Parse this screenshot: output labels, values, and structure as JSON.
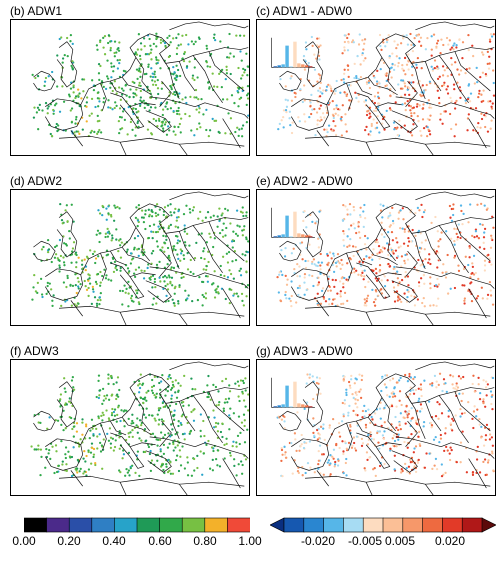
{
  "panels": [
    {
      "label": "(b) ADW1",
      "kind": "abs"
    },
    {
      "label": "(c) ADW1 - ADW0",
      "kind": "diff"
    },
    {
      "label": "(d) ADW2",
      "kind": "abs"
    },
    {
      "label": "(e) ADW2 - ADW0",
      "kind": "diff"
    },
    {
      "label": "(f) ADW3",
      "kind": "abs"
    },
    {
      "label": "(g) ADW3 - ADW0",
      "kind": "diff"
    }
  ],
  "colorbars": {
    "absolute": {
      "ticks": [
        "0.00",
        "0.20",
        "0.40",
        "0.60",
        "0.80",
        "1.00"
      ],
      "colors": [
        "#000000",
        "#4b2a8a",
        "#2a4fa8",
        "#2f7fc4",
        "#27a3c9",
        "#1f9a57",
        "#31a94a",
        "#77c043",
        "#f3b12a",
        "#f04a38"
      ]
    },
    "difference": {
      "ticks": [
        "-0.020",
        "-0.005",
        "0.005",
        "0.020"
      ],
      "colors": [
        "#0a2f80",
        "#1658b0",
        "#2a86d0",
        "#56b6e8",
        "#a7dcf3",
        "#fddcc0",
        "#fbbf96",
        "#f6986a",
        "#ee6a40",
        "#e23a28",
        "#b01818",
        "#5c0a0a"
      ]
    }
  },
  "chart_data": [
    {
      "type": "scatter",
      "title": "(b) ADW1"
    },
    {
      "type": "scatter",
      "title": "(c) ADW1 - ADW0"
    },
    {
      "type": "scatter",
      "title": "(d) ADW2"
    },
    {
      "type": "scatter",
      "title": "(e) ADW2 - ADW0"
    },
    {
      "type": "scatter",
      "title": "(f) ADW3"
    },
    {
      "type": "scatter",
      "title": "(g) ADW3 - ADW0"
    }
  ]
}
